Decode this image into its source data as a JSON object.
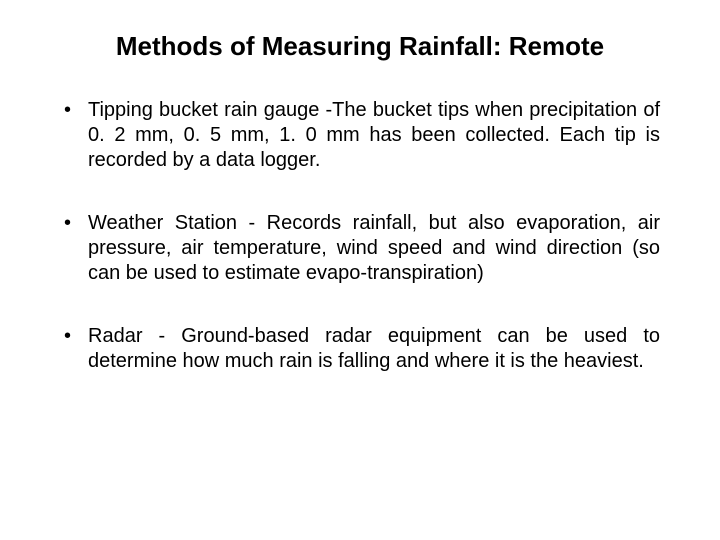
{
  "slide": {
    "title": "Methods of Measuring Rainfall: Remote",
    "title_fontsize": 26,
    "body_fontsize": 20,
    "background_color": "#ffffff",
    "text_color": "#000000",
    "bullets": [
      "Tipping bucket rain gauge -The bucket tips when precipitation of 0. 2 mm, 0. 5 mm, 1. 0 mm has been collected. Each tip is recorded by a data logger.",
      "Weather Station - Records  rainfall, but also evaporation, air pressure, air temperature, wind speed and wind direction (so can be used to estimate evapo-transpiration)",
      "Radar - Ground-based radar equipment can be used to determine how much rain is falling and where it is the heaviest."
    ]
  }
}
